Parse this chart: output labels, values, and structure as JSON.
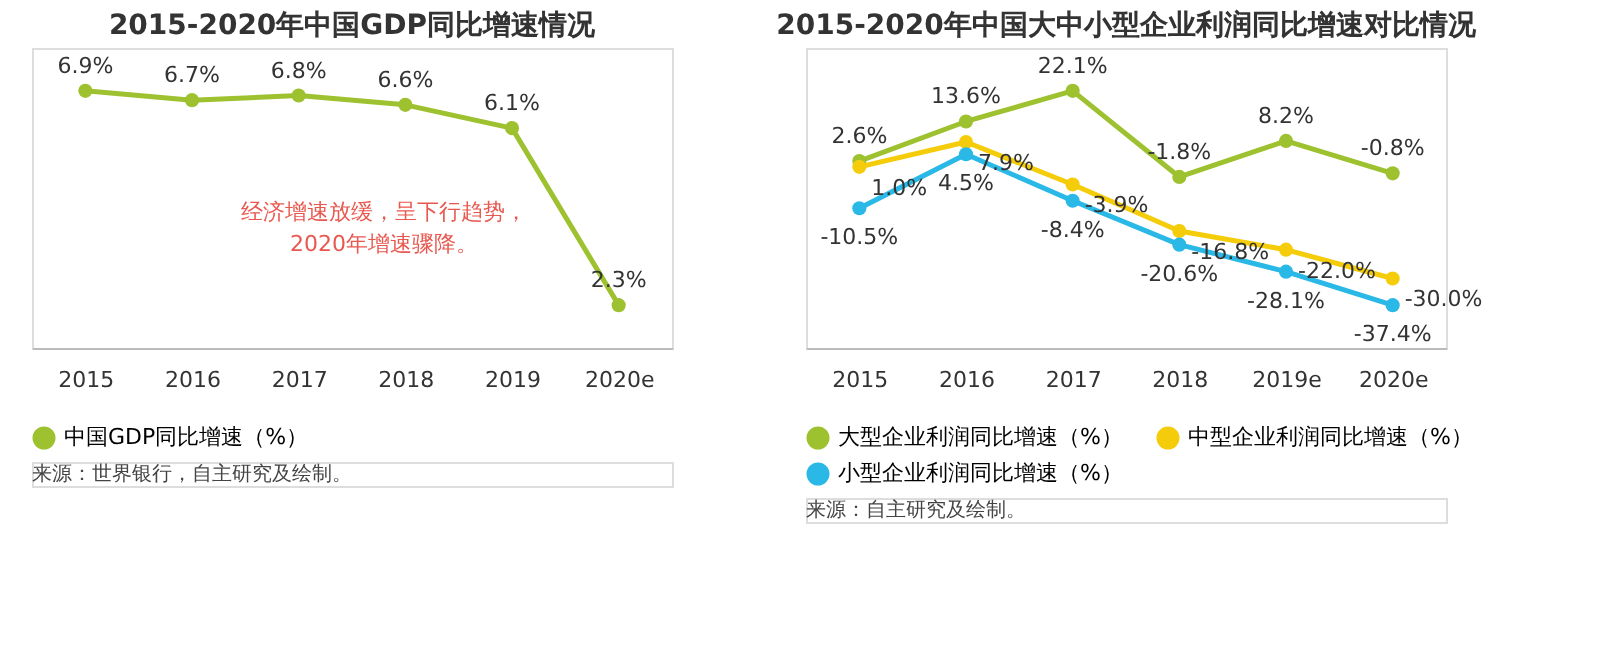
{
  "chart_data": [
    {
      "type": "line",
      "title": "2015-2020年中国GDP同比增速情况",
      "categories": [
        "2015",
        "2016",
        "2017",
        "2018",
        "2019",
        "2020e"
      ],
      "series": [
        {
          "name": "中国GDP同比增速（%）",
          "color": "#9dc12f",
          "values": [
            6.9,
            6.7,
            6.8,
            6.6,
            6.1,
            2.3
          ],
          "value_labels": [
            "6.9%",
            "6.7%",
            "6.8%",
            "6.6%",
            "6.1%",
            "2.3%"
          ]
        }
      ],
      "marker": "circle",
      "line_style": "solid",
      "grid": false,
      "legend": "bottom",
      "tick_labels": "x",
      "annotations": [
        "经济增速放缓，呈下行趋势，2020年增速骤降。",
        "来源：世界银行，自主研究及绘制。"
      ]
    },
    {
      "type": "line",
      "title": "2015-2020年中国大中小型企业利润同比增速对比情况",
      "categories": [
        "2015",
        "2016",
        "2017",
        "2018",
        "2019e",
        "2020e"
      ],
      "series": [
        {
          "name": "大型企业利润同比增速（%）",
          "color": "#9dc12f",
          "values": [
            2.6,
            13.6,
            22.1,
            -1.8,
            8.2,
            -0.8
          ],
          "value_labels": [
            "2.6%",
            "13.6%",
            "22.1%",
            "-1.8%",
            "8.2%",
            "-0.8%"
          ]
        },
        {
          "name": "中型企业利润同比增速（%）",
          "color": "#f5cc0a",
          "values": [
            1.0,
            7.9,
            -3.9,
            -16.8,
            -22.0,
            -30.0
          ],
          "value_labels": [
            "1.0%",
            "7.9%",
            "-3.9%",
            "-16.8%",
            "-22.0%",
            "-30.0%"
          ]
        },
        {
          "name": "小型企业利润同比增速（%）",
          "color": "#2ab8e6",
          "values": [
            -10.5,
            4.5,
            -8.4,
            -20.6,
            -28.1,
            -37.4
          ],
          "value_labels": [
            "-10.5%",
            "4.5%",
            "-8.4%",
            "-20.6%",
            "-28.1%",
            "-37.4%"
          ]
        }
      ],
      "marker": "circle",
      "line_style": "solid",
      "grid": false,
      "legend": "bottom",
      "tick_labels": "x",
      "annotations": [
        "来源：自主研究及绘制。"
      ]
    }
  ]
}
